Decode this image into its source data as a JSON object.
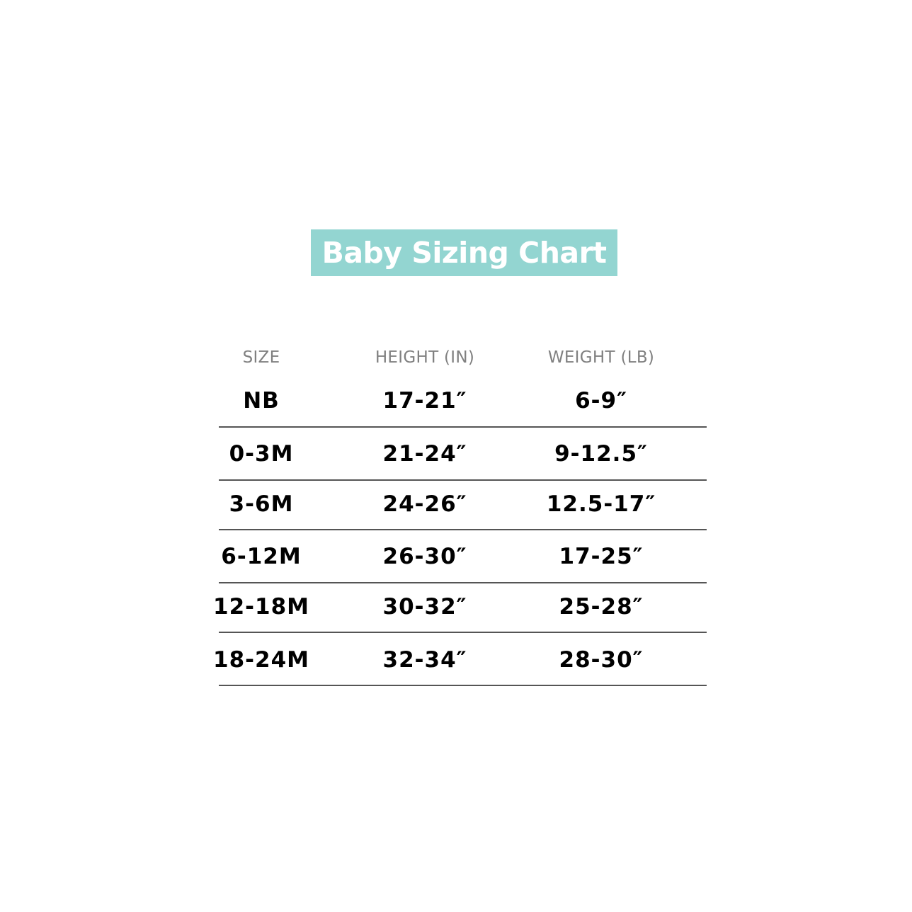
{
  "title": "Baby Sizing Chart",
  "colors": {
    "title_background": "#93d5d1",
    "header_text": "#808080"
  },
  "table": {
    "headers": [
      "SIZE",
      "HEIGHT (IN)",
      "WEIGHT (LB)"
    ],
    "rows": [
      [
        "NB",
        "17-21″",
        "6-9″"
      ],
      [
        "0-3M",
        "21-24″",
        "9-12.5″"
      ],
      [
        "3-6M",
        "24-26″",
        "12.5-17″"
      ],
      [
        "6-12M",
        "26-30″",
        "17-25″"
      ],
      [
        "12-18M",
        "30-32″",
        "25-28″"
      ],
      [
        "18-24M",
        "32-34″",
        "28-30″"
      ]
    ]
  }
}
